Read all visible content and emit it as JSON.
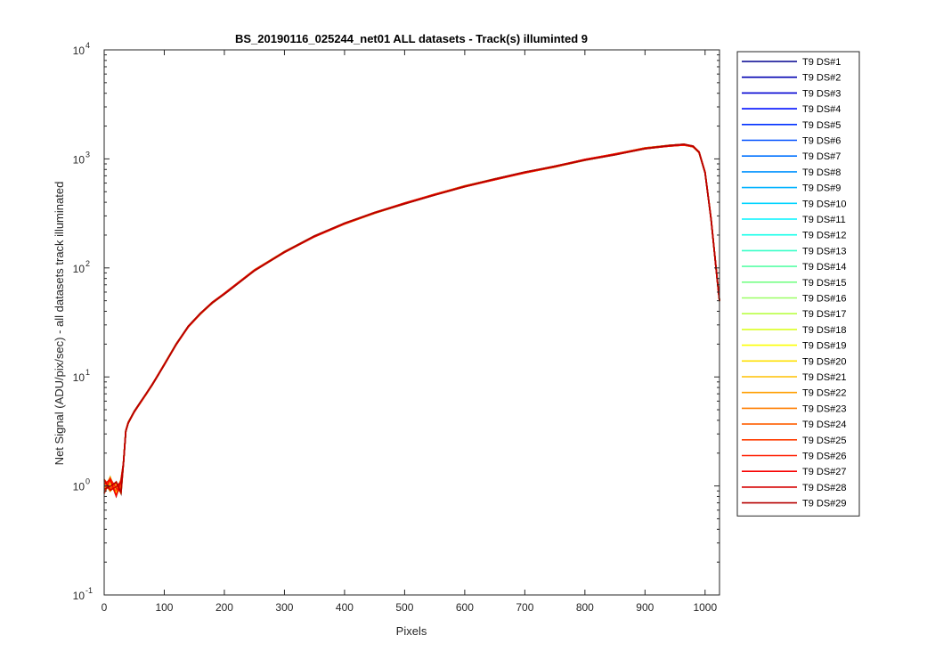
{
  "chart_data": {
    "type": "line",
    "title": "BS_20190116_025244_net01 ALL datasets - Track(s) illuminted 9",
    "xlabel": "Pixels",
    "ylabel": "Net Signal (ADU/pix/sec) - all datasets track illuminated",
    "xlim": [
      0,
      1024
    ],
    "ylim": [
      0.1,
      10000
    ],
    "yscale": "log",
    "grid": false,
    "legend_position": "outside-right",
    "x_ticks": [
      0,
      100,
      200,
      300,
      400,
      500,
      600,
      700,
      800,
      900,
      1000
    ],
    "y_ticks": [
      {
        "base": "10",
        "exp": "-1",
        "value": 0.1
      },
      {
        "base": "10",
        "exp": "0",
        "value": 1
      },
      {
        "base": "10",
        "exp": "1",
        "value": 10
      },
      {
        "base": "10",
        "exp": "2",
        "value": 100
      },
      {
        "base": "10",
        "exp": "3",
        "value": 1000
      },
      {
        "base": "10",
        "exp": "4",
        "value": 10000
      }
    ],
    "x": [
      0,
      10,
      20,
      28,
      32,
      36,
      40,
      50,
      60,
      70,
      80,
      90,
      100,
      120,
      140,
      160,
      180,
      200,
      250,
      300,
      350,
      400,
      450,
      500,
      550,
      600,
      650,
      700,
      750,
      800,
      850,
      900,
      940,
      965,
      980,
      990,
      1000,
      1010,
      1020,
      1024
    ],
    "y_profile": [
      1.0,
      1.05,
      0.95,
      1.0,
      1.6,
      3.2,
      3.8,
      4.8,
      5.8,
      7.0,
      8.5,
      10.5,
      13.0,
      20.0,
      29.0,
      38.0,
      48.0,
      58.0,
      95.0,
      140.0,
      195.0,
      255.0,
      320.0,
      390.0,
      470.0,
      560.0,
      650.0,
      750.0,
      850.0,
      980.0,
      1100.0,
      1250.0,
      1320.0,
      1350.0,
      1300.0,
      1150.0,
      750.0,
      280.0,
      80.0,
      50.0
    ],
    "series": [
      {
        "name": "T9 DS#1",
        "color": "#00008f"
      },
      {
        "name": "T9 DS#2",
        "color": "#0000b0"
      },
      {
        "name": "T9 DS#3",
        "color": "#0000d2"
      },
      {
        "name": "T9 DS#4",
        "color": "#0010ff"
      },
      {
        "name": "T9 DS#5",
        "color": "#0030ff"
      },
      {
        "name": "T9 DS#6",
        "color": "#0050ff"
      },
      {
        "name": "T9 DS#7",
        "color": "#0072ff"
      },
      {
        "name": "T9 DS#8",
        "color": "#0092ff"
      },
      {
        "name": "T9 DS#9",
        "color": "#00b2ff"
      },
      {
        "name": "T9 DS#10",
        "color": "#00d4ff"
      },
      {
        "name": "T9 DS#11",
        "color": "#00f4ff"
      },
      {
        "name": "T9 DS#12",
        "color": "#16ffea"
      },
      {
        "name": "T9 DS#13",
        "color": "#38ffc7"
      },
      {
        "name": "T9 DS#14",
        "color": "#58ffa7"
      },
      {
        "name": "T9 DS#15",
        "color": "#78ff87"
      },
      {
        "name": "T9 DS#16",
        "color": "#9aff65"
      },
      {
        "name": "T9 DS#17",
        "color": "#baff45"
      },
      {
        "name": "T9 DS#18",
        "color": "#dcff23"
      },
      {
        "name": "T9 DS#19",
        "color": "#fcff03"
      },
      {
        "name": "T9 DS#20",
        "color": "#ffe000"
      },
      {
        "name": "T9 DS#21",
        "color": "#ffc000"
      },
      {
        "name": "T9 DS#22",
        "color": "#ff9e00"
      },
      {
        "name": "T9 DS#23",
        "color": "#ff7e00"
      },
      {
        "name": "T9 DS#24",
        "color": "#ff5e00"
      },
      {
        "name": "T9 DS#25",
        "color": "#ff3c00"
      },
      {
        "name": "T9 DS#26",
        "color": "#ff1c00"
      },
      {
        "name": "T9 DS#27",
        "color": "#f80000"
      },
      {
        "name": "T9 DS#28",
        "color": "#d60000"
      },
      {
        "name": "T9 DS#29",
        "color": "#b60000"
      }
    ]
  }
}
